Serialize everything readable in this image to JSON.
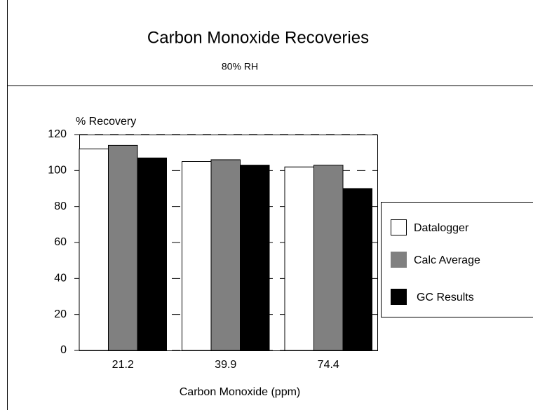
{
  "chart_data": {
    "type": "bar",
    "title": "Carbon Monoxide Recoveries",
    "subtitle": "80% RH",
    "x_label": "Carbon Monoxide (ppm)",
    "y_label": "% Recovery",
    "categories": [
      "21.2",
      "39.9",
      "74.4"
    ],
    "series": [
      {
        "name": "Datalogger",
        "color": "#ffffff",
        "values": [
          112,
          105,
          102
        ]
      },
      {
        "name": "Calc Average",
        "color": "#808080",
        "values": [
          114,
          106,
          103
        ]
      },
      {
        "name": "GC Results",
        "color": "#000000",
        "values": [
          107,
          103,
          90
        ]
      }
    ],
    "ylim": [
      0,
      120
    ],
    "yticks": [
      0,
      20,
      40,
      60,
      80,
      100,
      120
    ],
    "grid": true,
    "legend": "right"
  }
}
